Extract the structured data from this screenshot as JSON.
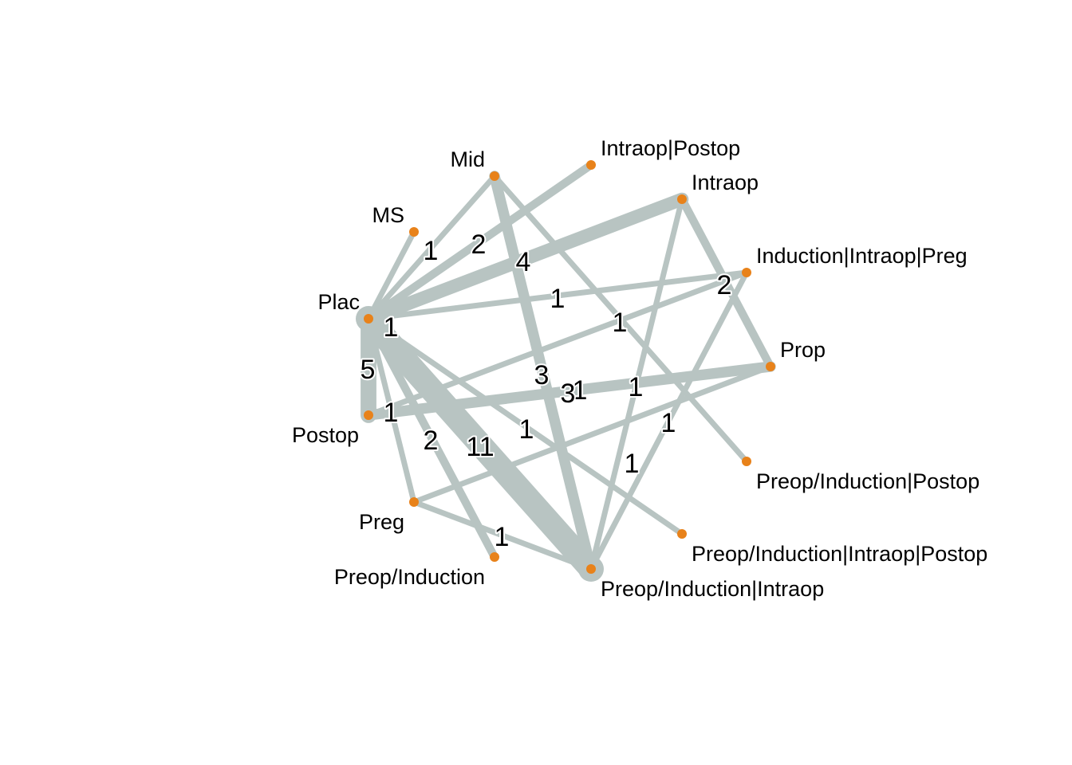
{
  "colors": {
    "edge": "#b8c4c2",
    "node": "#e8821a",
    "label": "#000000"
  },
  "nodes": [
    {
      "id": "plac",
      "label": "Plac"
    },
    {
      "id": "ms",
      "label": "MS"
    },
    {
      "id": "mid",
      "label": "Mid"
    },
    {
      "id": "intraop_postop",
      "label": "Intraop|Postop"
    },
    {
      "id": "intraop",
      "label": "Intraop"
    },
    {
      "id": "ind_intra_preg",
      "label": "Induction|Intraop|Preg"
    },
    {
      "id": "prop",
      "label": "Prop"
    },
    {
      "id": "pre_ind_post",
      "label": "Preop/Induction|Postop"
    },
    {
      "id": "pre_ind_intra_post",
      "label": "Preop/Induction|Intraop|Postop"
    },
    {
      "id": "pre_ind_intra",
      "label": "Preop/Induction|Intraop"
    },
    {
      "id": "pre_ind",
      "label": "Preop/Induction"
    },
    {
      "id": "preg",
      "label": "Preg"
    },
    {
      "id": "postop",
      "label": "Postop"
    }
  ],
  "edges": [
    {
      "from": "plac",
      "to": "ms",
      "count": "1"
    },
    {
      "from": "plac",
      "to": "mid",
      "count": ""
    },
    {
      "from": "plac",
      "to": "intraop_postop",
      "count": "2"
    },
    {
      "from": "plac",
      "to": "intraop",
      "count": "4"
    },
    {
      "from": "plac",
      "to": "ind_intra_preg",
      "count": "1"
    },
    {
      "from": "plac",
      "to": "postop",
      "count": "5"
    },
    {
      "from": "plac",
      "to": "preg",
      "count": "1"
    },
    {
      "from": "plac",
      "to": "pre_ind",
      "count": "2"
    },
    {
      "from": "plac",
      "to": "pre_ind_intra",
      "count": "11"
    },
    {
      "from": "plac",
      "to": "pre_ind_intra_post",
      "count": "1"
    },
    {
      "from": "mid",
      "to": "pre_ind_intra",
      "count": "3"
    },
    {
      "from": "mid",
      "to": "pre_ind_post",
      "count": "1"
    },
    {
      "from": "intraop",
      "to": "prop",
      "count": "2"
    },
    {
      "from": "intraop",
      "to": "pre_ind_intra",
      "count": "1"
    },
    {
      "from": "ind_intra_preg",
      "to": "postop",
      "count": "1"
    },
    {
      "from": "ind_intra_preg",
      "to": "pre_ind_intra",
      "count": "1"
    },
    {
      "from": "postop",
      "to": "prop",
      "count": "3"
    },
    {
      "from": "prop",
      "to": "preg",
      "count": "1"
    },
    {
      "from": "preg",
      "to": "pre_ind_intra",
      "count": "1"
    },
    {
      "from": "plac",
      "to": "plac_self_hint",
      "count": "1"
    }
  ]
}
